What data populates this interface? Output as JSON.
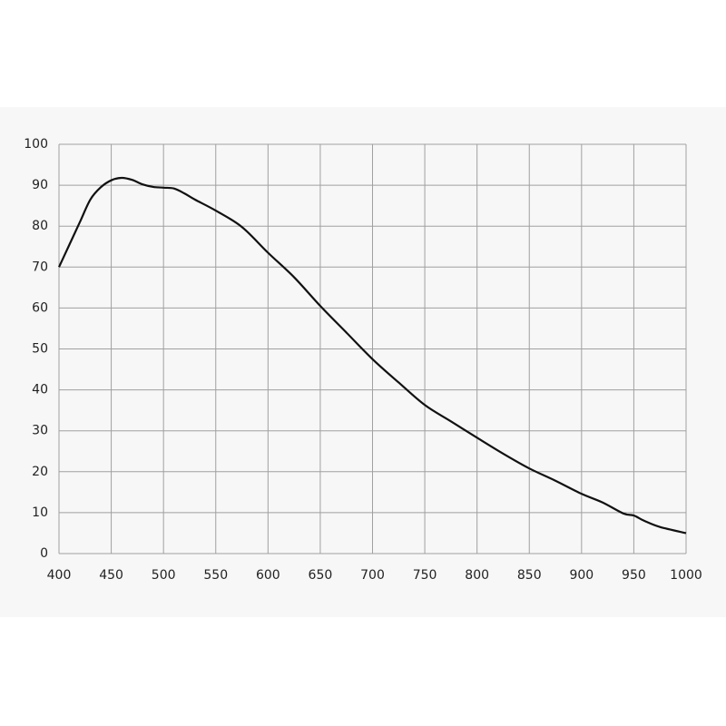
{
  "chart_data": {
    "type": "line",
    "x": [
      400,
      410,
      420,
      430,
      440,
      450,
      460,
      470,
      480,
      490,
      500,
      510,
      520,
      530,
      550,
      575,
      600,
      625,
      650,
      675,
      700,
      725,
      750,
      775,
      800,
      825,
      850,
      875,
      900,
      920,
      940,
      950,
      960,
      975,
      1000
    ],
    "values": [
      70,
      75.5,
      81,
      86.5,
      89.5,
      91.2,
      91.8,
      91.3,
      90.2,
      89.6,
      89.4,
      89.2,
      88,
      86.5,
      83.8,
      79.8,
      73.5,
      67.5,
      60.5,
      54,
      47.5,
      41.8,
      36.3,
      32.3,
      28.3,
      24.4,
      20.8,
      17.8,
      14.6,
      12.5,
      9.8,
      9.3,
      8,
      6.5,
      5
    ],
    "color": "#111111",
    "xlim": [
      400,
      1000
    ],
    "xticks": [
      400,
      450,
      500,
      550,
      600,
      650,
      700,
      750,
      800,
      850,
      900,
      950,
      1000
    ],
    "ylim": [
      0,
      100
    ],
    "yticks": [
      0,
      10,
      20,
      30,
      40,
      50,
      60,
      70,
      80,
      90,
      100
    ],
    "grid": true
  }
}
